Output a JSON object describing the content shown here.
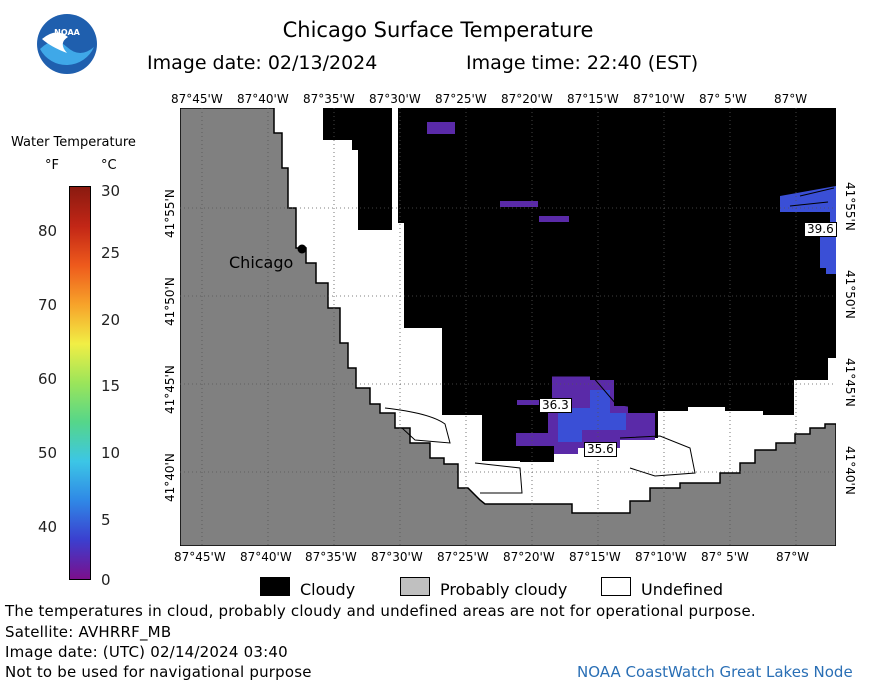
{
  "header": {
    "logo_text": "NOAA",
    "title": "Chicago Surface Temperature",
    "image_date": "Image date: 02/13/2024",
    "image_time": "Image time: 22:40 (EST)"
  },
  "legend": {
    "heading": "Water Temperature",
    "unit_f": "°F",
    "unit_c": "°C",
    "f_ticks": [
      "80",
      "70",
      "60",
      "50",
      "40"
    ],
    "c_ticks": [
      "30",
      "25",
      "20",
      "15",
      "10",
      "5",
      "0"
    ],
    "colors": [
      "#7b0f8c",
      "#3b3fcf",
      "#2f88e6",
      "#3cc6e6",
      "#55d68a",
      "#9be55a",
      "#f1ee45",
      "#f7a32a",
      "#ee5a1c",
      "#c22616",
      "#8a1a10"
    ]
  },
  "map": {
    "top_lon_labels": [
      "87°45'W",
      "87°40'W",
      "87°35'W",
      "87°30'W",
      "87°25'W",
      "87°20'W",
      "87°15'W",
      "87°10'W",
      "87° 5'W",
      "87°W"
    ],
    "bottom_lon_labels": [
      "87°45'W",
      "87°40'W",
      "87°35'W",
      "87°30'W",
      "87°25'W",
      "87°20'W",
      "87°15'W",
      "87°10'W",
      "87° 5'W",
      "87°W"
    ],
    "lat_labels": [
      "41°55'N",
      "41°50'N",
      "41°45'N",
      "41°40'N"
    ],
    "city_label": "Chicago",
    "values": [
      "39.6",
      "36.3",
      "35.6"
    ],
    "colors": {
      "land": "#808080",
      "cloudy": "#000000",
      "probably_cloudy": "#c0c0c0",
      "undefined": "#ffffff",
      "cold_water": "#5a2aa8",
      "warm_water": "#3a4fd6"
    }
  },
  "map_legend": {
    "cloudy": "Cloudy",
    "probably_cloudy": "Probably cloudy",
    "undefined": "Undefined"
  },
  "footer": {
    "note": "The temperatures in cloud, probably cloudy and undefined areas are not for operational purpose.",
    "satellite": "Satellite: AVHRRF_MB",
    "utc_date": "Image date: (UTC) 02/14/2024  03:40",
    "disclaimer": "Not to be used for navigational purpose",
    "credit": "NOAA CoastWatch Great Lakes Node"
  }
}
